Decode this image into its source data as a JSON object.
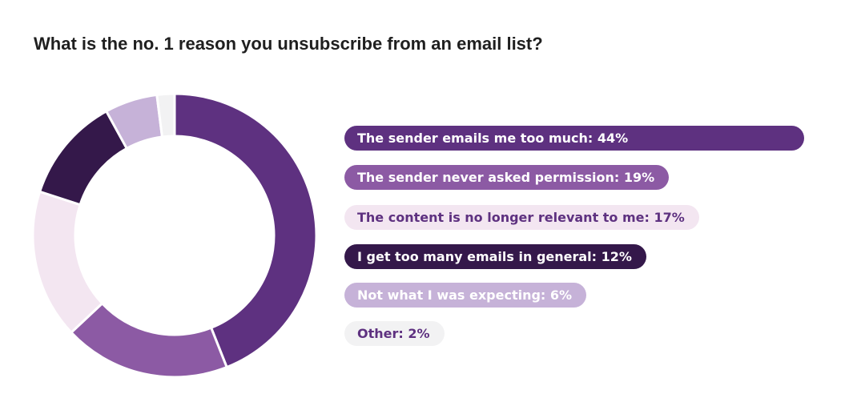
{
  "chart_data": {
    "type": "pie",
    "style": "donut",
    "title": "What is the no. 1 reason you unsubscribe from an email list?",
    "categories": [
      "The sender emails me too much",
      "The sender never asked permission",
      "The content is no longer relevant to me",
      "I get too many emails in general",
      "Not what I was expecting",
      "Other"
    ],
    "values": [
      44,
      19,
      17,
      12,
      6,
      2
    ],
    "unit": "%",
    "legend": [
      "The sender emails me too much: 44%",
      "The sender never asked permission: 19%",
      "The content is no longer relevant to me: 17%",
      "I get too many emails in general: 12%",
      "Not what I was expecting: 6%",
      "Other: 2%"
    ],
    "legend_position": "right",
    "colors": [
      "#5e3180",
      "#8c5aa4",
      "#f3e6f1",
      "#34184a",
      "#c6b2d8",
      "#f2f2f3"
    ],
    "legend_text_colors": [
      "#ffffff",
      "#ffffff",
      "#5e3180",
      "#ffffff",
      "#ffffff",
      "#5e3180"
    ]
  }
}
